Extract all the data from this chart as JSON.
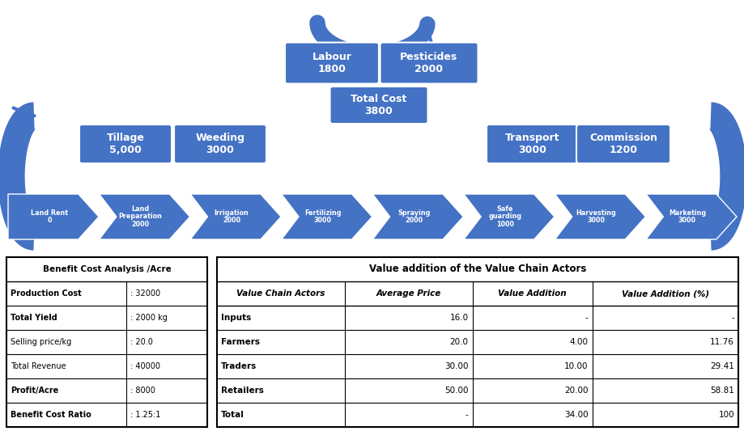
{
  "bg_color": "#ffffff",
  "arrow_color": "#4472C4",
  "box_color": "#4472C4",
  "top_boxes": [
    {
      "label": "Labour\n1800"
    },
    {
      "label": "Pesticides\n2000"
    }
  ],
  "top_total_box": {
    "label": "Total Cost\n3800"
  },
  "left_boxes": [
    {
      "label": "Tillage\n5,000"
    },
    {
      "label": "Weeding\n3000"
    }
  ],
  "right_boxes": [
    {
      "label": "Transport\n3000"
    },
    {
      "label": "Commission\n1200"
    }
  ],
  "chevron_items": [
    "Land Rent\n0",
    "Land\nPreparation\n2000",
    "Irrigation\n2000",
    "Fertilizing\n3000",
    "Spraying\n2000",
    "Safe\nguarding\n1000",
    "Harvesting\n3000",
    "Marketing\n3000"
  ],
  "benefit_table": {
    "title": "Benefit Cost Analysis /Acre",
    "rows": [
      [
        "Production Cost",
        ": 32000"
      ],
      [
        "Total Yield",
        ": 2000 kg"
      ],
      [
        "Selling price/kg",
        ": 20.0"
      ],
      [
        "Total Revenue",
        ": 40000"
      ],
      [
        "Profit/Acre",
        ": 8000"
      ],
      [
        "Benefit Cost Ratio",
        ": 1.25:1"
      ]
    ],
    "bold_rows": [
      "Production Cost",
      "Total Yield",
      "Profit/Acre",
      "Benefit Cost Ratio"
    ]
  },
  "value_table": {
    "title": "Value addition of the Value Chain Actors",
    "headers": [
      "Value Chain Actors",
      "Average Price",
      "Value Addition",
      "Value Addition (%)"
    ],
    "rows": [
      [
        "Inputs",
        "16.0",
        "-",
        "-"
      ],
      [
        "Farmers",
        "20.0",
        "4.00",
        "11.76"
      ],
      [
        "Traders",
        "30.00",
        "10.00",
        "29.41"
      ],
      [
        "Retailers",
        "50.00",
        "20.00",
        "58.81"
      ],
      [
        "Total",
        "-",
        "34.00",
        "100"
      ]
    ]
  }
}
